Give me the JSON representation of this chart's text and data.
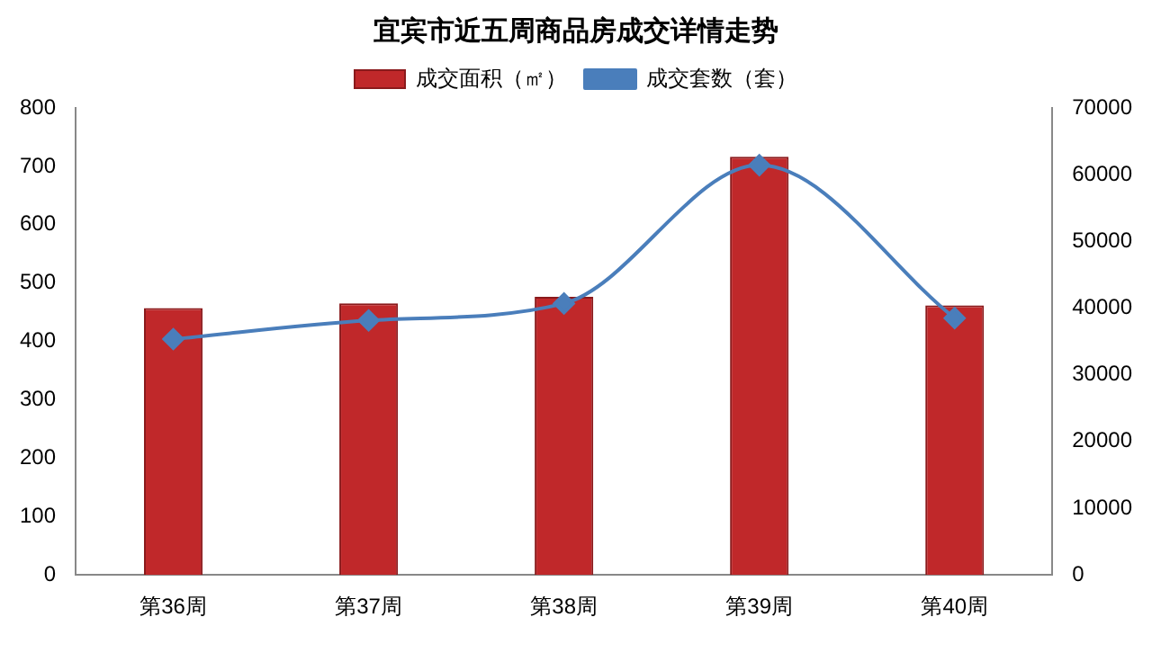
{
  "chart_data": {
    "type": "bar",
    "title": "宜宾市近五周商品房成交详情走势",
    "categories": [
      "第36周",
      "第37周",
      "第38周",
      "第39周",
      "第40周"
    ],
    "series": [
      {
        "name": "成交面积（㎡）",
        "axis": "y2",
        "color": "#c0282a",
        "values": [
          40000,
          40700,
          41700,
          62700,
          40400
        ]
      },
      {
        "name": "成交套数（套）",
        "type": "line",
        "axis": "y",
        "color": "#4a7ebb",
        "values": [
          404,
          436,
          465,
          702,
          440
        ]
      }
    ],
    "ylim": [
      0,
      800
    ],
    "yticks": [
      0,
      100,
      200,
      300,
      400,
      500,
      600,
      700,
      800
    ],
    "y2lim": [
      0,
      70000
    ],
    "y2ticks": [
      0,
      10000,
      20000,
      30000,
      40000,
      50000,
      60000,
      70000
    ],
    "legend": "top",
    "marker": "diamond",
    "grid": false
  }
}
